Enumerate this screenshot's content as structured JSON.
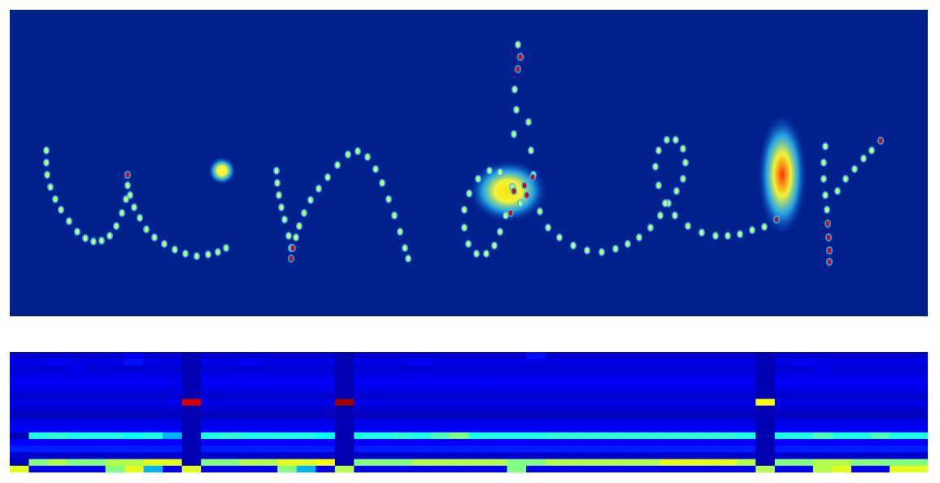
{
  "chart_data": [
    {
      "type": "scatter",
      "tick_labels": false,
      "xlim": [
        12,
        1141
      ],
      "ylim": [
        12,
        389
      ],
      "series": [
        {
          "marker": "glow",
          "colors": [
            "#ffff40",
            "#ffe000",
            "#ff3000"
          ],
          "x": [
            273,
            625,
            962
          ],
          "y": [
            210,
            235,
            215
          ],
          "sizes": [
            [
              17,
              17
            ],
            [
              48,
              38
            ],
            [
              30,
              75
            ]
          ]
        },
        {
          "marker": "dot",
          "color": "#c8ff70",
          "x": [
            57,
            57,
            58,
            62,
            68,
            75,
            85,
            95,
            105,
            115,
            125,
            135,
            143,
            150,
            155,
            157,
            160,
            165,
            172,
            180,
            190,
            202,
            215,
            228,
            242,
            256,
            268,
            278,
            340,
            341,
            343,
            346,
            350,
            355,
            358,
            364,
            368,
            374,
            382,
            392,
            403,
            415,
            428,
            440,
            452,
            462,
            470,
            478,
            485,
            492,
            498,
            502,
            640,
            630,
            615,
            602,
            588,
            577,
            571,
            571,
            576,
            586,
            598,
            608,
            615,
            622,
            632,
            635,
            633,
            637,
            650,
            653,
            656,
            664,
            674,
            688,
            705,
            722,
            740,
            757,
            772,
            786,
            800,
            812,
            822,
            832,
            840,
            843,
            840,
            831,
            820,
            810,
            806,
            810,
            818,
            830,
            846,
            863,
            880,
            895,
            910,
            925,
            940,
            1015,
            1013,
            1013,
            1015,
            1017,
            1030,
            1040,
            1051,
            1062,
            1072
          ],
          "y": [
            185,
            200,
            215,
            230,
            245,
            258,
            272,
            285,
            293,
            297,
            296,
            290,
            278,
            262,
            245,
            228,
            240,
            255,
            268,
            282,
            292,
            300,
            307,
            312,
            315,
            313,
            310,
            305,
            210,
            225,
            240,
            255,
            270,
            290,
            305,
            292,
            278,
            262,
            246,
            232,
            218,
            203,
            190,
            186,
            193,
            208,
            225,
            245,
            265,
            285,
            305,
            318,
            250,
            230,
            212,
            210,
            220,
            238,
            258,
            280,
            300,
            312,
            312,
            302,
            285,
            265,
            165,
            135,
            110,
            55,
            150,
            185,
            215,
            260,
            280,
            292,
            302,
            308,
            310,
            306,
            300,
            292,
            280,
            265,
            250,
            235,
            220,
            200,
            183,
            172,
            172,
            185,
            205,
            228,
            250,
            265,
            278,
            286,
            290,
            290,
            288,
            283,
            279,
            180,
            200,
            220,
            240,
            258,
            235,
            220,
            208,
            195,
            185
          ]
        },
        {
          "marker": "dot",
          "color": "#c01010",
          "x": [
            157,
            360,
            358,
            628,
            632,
            645,
            655,
            648,
            637,
            640,
            1018,
            1019,
            1020,
            1020,
            1083,
            955
          ],
          "y": [
            215,
            305,
            318,
            262,
            235,
            228,
            218,
            240,
            85,
            70,
            275,
            292,
            308,
            322,
            173,
            270
          ]
        }
      ]
    },
    {
      "type": "heatmap",
      "tick_labels": false,
      "xlim": [
        0,
        48
      ],
      "ylim": [
        0,
        18
      ],
      "zlim": [
        0,
        1
      ],
      "cells": [
        [
          0.08,
          0.08,
          0.08,
          0.08,
          0.08,
          0.08,
          0.12,
          0.08,
          0.08,
          0.05,
          0.08,
          0.08,
          0.08,
          0.08,
          0.08,
          0.08,
          0.08,
          0.05,
          0.08,
          0.08,
          0.08,
          0.08,
          0.08,
          0.08,
          0.08,
          0.08,
          0.08,
          0.14,
          0.08,
          0.08,
          0.08,
          0.08,
          0.08,
          0.08,
          0.08,
          0.08,
          0.08,
          0.08,
          0.08,
          0.05,
          0.08,
          0.08,
          0.08,
          0.08,
          0.08,
          0.08,
          0.08,
          0.08
        ],
        [
          0.1,
          0.1,
          0.12,
          0.1,
          0.1,
          0.1,
          0.14,
          0.1,
          0.1,
          0.05,
          0.1,
          0.1,
          0.12,
          0.1,
          0.1,
          0.1,
          0.1,
          0.05,
          0.1,
          0.1,
          0.1,
          0.12,
          0.1,
          0.1,
          0.1,
          0.1,
          0.1,
          0.1,
          0.1,
          0.1,
          0.1,
          0.1,
          0.1,
          0.1,
          0.1,
          0.1,
          0.1,
          0.1,
          0.1,
          0.05,
          0.1,
          0.12,
          0.1,
          0.1,
          0.1,
          0.1,
          0.1,
          0.1
        ],
        [
          0.08,
          0.08,
          0.08,
          0.1,
          0.08,
          0.08,
          0.08,
          0.08,
          0.08,
          0.05,
          0.08,
          0.08,
          0.08,
          0.08,
          0.08,
          0.08,
          0.08,
          0.05,
          0.08,
          0.08,
          0.08,
          0.08,
          0.08,
          0.08,
          0.08,
          0.08,
          0.08,
          0.08,
          0.08,
          0.08,
          0.08,
          0.08,
          0.08,
          0.08,
          0.08,
          0.08,
          0.08,
          0.08,
          0.08,
          0.05,
          0.08,
          0.08,
          0.1,
          0.08,
          0.08,
          0.08,
          0.08,
          0.08
        ],
        [
          0.1,
          0.1,
          0.1,
          0.1,
          0.1,
          0.1,
          0.1,
          0.1,
          0.1,
          0.05,
          0.1,
          0.1,
          0.1,
          0.1,
          0.1,
          0.1,
          0.1,
          0.05,
          0.1,
          0.1,
          0.1,
          0.1,
          0.1,
          0.1,
          0.1,
          0.1,
          0.1,
          0.1,
          0.1,
          0.1,
          0.1,
          0.1,
          0.1,
          0.1,
          0.1,
          0.1,
          0.1,
          0.1,
          0.1,
          0.05,
          0.1,
          0.1,
          0.1,
          0.1,
          0.1,
          0.1,
          0.1,
          0.1
        ],
        [
          0.12,
          0.12,
          0.12,
          0.12,
          0.12,
          0.12,
          0.12,
          0.12,
          0.12,
          0.05,
          0.12,
          0.12,
          0.12,
          0.12,
          0.12,
          0.12,
          0.12,
          0.05,
          0.12,
          0.12,
          0.12,
          0.12,
          0.12,
          0.12,
          0.12,
          0.12,
          0.12,
          0.12,
          0.12,
          0.12,
          0.12,
          0.12,
          0.12,
          0.12,
          0.12,
          0.12,
          0.12,
          0.12,
          0.12,
          0.05,
          0.12,
          0.12,
          0.12,
          0.12,
          0.12,
          0.12,
          0.12,
          0.12
        ],
        [
          0.1,
          0.1,
          0.1,
          0.1,
          0.1,
          0.1,
          0.1,
          0.1,
          0.1,
          0.05,
          0.1,
          0.1,
          0.1,
          0.1,
          0.1,
          0.1,
          0.1,
          0.05,
          0.1,
          0.1,
          0.1,
          0.1,
          0.1,
          0.1,
          0.1,
          0.1,
          0.1,
          0.1,
          0.1,
          0.1,
          0.1,
          0.1,
          0.1,
          0.1,
          0.1,
          0.1,
          0.1,
          0.1,
          0.1,
          0.05,
          0.1,
          0.1,
          0.1,
          0.1,
          0.1,
          0.1,
          0.1,
          0.1
        ],
        [
          0.08,
          0.08,
          0.08,
          0.08,
          0.08,
          0.08,
          0.08,
          0.08,
          0.08,
          0.05,
          0.08,
          0.08,
          0.08,
          0.08,
          0.08,
          0.08,
          0.08,
          0.05,
          0.08,
          0.08,
          0.08,
          0.08,
          0.08,
          0.08,
          0.08,
          0.08,
          0.08,
          0.08,
          0.08,
          0.08,
          0.08,
          0.08,
          0.08,
          0.08,
          0.08,
          0.08,
          0.08,
          0.08,
          0.08,
          0.05,
          0.08,
          0.08,
          0.08,
          0.08,
          0.08,
          0.08,
          0.08,
          0.08
        ],
        [
          0.1,
          0.1,
          0.1,
          0.1,
          0.1,
          0.1,
          0.1,
          0.1,
          0.1,
          0.92,
          0.1,
          0.1,
          0.1,
          0.1,
          0.1,
          0.1,
          0.1,
          0.97,
          0.1,
          0.1,
          0.1,
          0.1,
          0.1,
          0.1,
          0.1,
          0.1,
          0.1,
          0.1,
          0.1,
          0.1,
          0.1,
          0.1,
          0.1,
          0.1,
          0.1,
          0.1,
          0.1,
          0.1,
          0.1,
          0.62,
          0.1,
          0.1,
          0.1,
          0.1,
          0.1,
          0.1,
          0.1,
          0.1
        ],
        [
          0.08,
          0.08,
          0.08,
          0.08,
          0.08,
          0.08,
          0.08,
          0.08,
          0.08,
          0.05,
          0.08,
          0.08,
          0.08,
          0.08,
          0.08,
          0.08,
          0.08,
          0.05,
          0.08,
          0.08,
          0.08,
          0.08,
          0.08,
          0.08,
          0.08,
          0.08,
          0.08,
          0.08,
          0.08,
          0.08,
          0.08,
          0.08,
          0.08,
          0.08,
          0.08,
          0.08,
          0.08,
          0.08,
          0.08,
          0.05,
          0.08,
          0.08,
          0.08,
          0.08,
          0.08,
          0.08,
          0.08,
          0.08
        ],
        [
          0.06,
          0.06,
          0.06,
          0.06,
          0.06,
          0.06,
          0.06,
          0.06,
          0.06,
          0.05,
          0.06,
          0.06,
          0.06,
          0.06,
          0.06,
          0.06,
          0.06,
          0.05,
          0.06,
          0.06,
          0.06,
          0.06,
          0.06,
          0.06,
          0.06,
          0.06,
          0.06,
          0.06,
          0.06,
          0.06,
          0.06,
          0.06,
          0.06,
          0.06,
          0.06,
          0.06,
          0.06,
          0.06,
          0.06,
          0.05,
          0.06,
          0.06,
          0.06,
          0.06,
          0.06,
          0.06,
          0.06,
          0.06
        ],
        [
          0.1,
          0.1,
          0.1,
          0.1,
          0.1,
          0.1,
          0.1,
          0.1,
          0.1,
          0.05,
          0.1,
          0.1,
          0.1,
          0.1,
          0.1,
          0.1,
          0.1,
          0.05,
          0.1,
          0.1,
          0.1,
          0.1,
          0.1,
          0.1,
          0.1,
          0.1,
          0.1,
          0.1,
          0.1,
          0.1,
          0.1,
          0.1,
          0.1,
          0.1,
          0.1,
          0.1,
          0.1,
          0.1,
          0.1,
          0.05,
          0.1,
          0.1,
          0.1,
          0.1,
          0.1,
          0.1,
          0.1,
          0.1
        ],
        [
          0.12,
          0.12,
          0.12,
          0.12,
          0.12,
          0.12,
          0.12,
          0.12,
          0.12,
          0.05,
          0.12,
          0.12,
          0.12,
          0.12,
          0.12,
          0.12,
          0.12,
          0.05,
          0.12,
          0.12,
          0.12,
          0.12,
          0.12,
          0.12,
          0.12,
          0.12,
          0.12,
          0.12,
          0.12,
          0.12,
          0.12,
          0.12,
          0.12,
          0.12,
          0.12,
          0.12,
          0.12,
          0.12,
          0.12,
          0.05,
          0.12,
          0.12,
          0.12,
          0.12,
          0.12,
          0.12,
          0.12,
          0.12
        ],
        [
          0.05,
          0.4,
          0.42,
          0.4,
          0.4,
          0.4,
          0.38,
          0.4,
          0.3,
          0.05,
          0.4,
          0.42,
          0.4,
          0.4,
          0.4,
          0.4,
          0.38,
          0.05,
          0.4,
          0.4,
          0.42,
          0.4,
          0.45,
          0.5,
          0.4,
          0.4,
          0.4,
          0.4,
          0.42,
          0.42,
          0.42,
          0.42,
          0.42,
          0.42,
          0.42,
          0.42,
          0.42,
          0.42,
          0.4,
          0.05,
          0.4,
          0.4,
          0.45,
          0.4,
          0.4,
          0.45,
          0.4,
          0.4
        ],
        [
          0.12,
          0.12,
          0.12,
          0.12,
          0.12,
          0.12,
          0.12,
          0.12,
          0.12,
          0.05,
          0.12,
          0.12,
          0.12,
          0.12,
          0.12,
          0.12,
          0.12,
          0.05,
          0.12,
          0.12,
          0.12,
          0.12,
          0.12,
          0.12,
          0.12,
          0.12,
          0.12,
          0.12,
          0.12,
          0.12,
          0.12,
          0.12,
          0.12,
          0.12,
          0.12,
          0.12,
          0.12,
          0.12,
          0.12,
          0.05,
          0.12,
          0.12,
          0.12,
          0.12,
          0.12,
          0.12,
          0.12,
          0.12
        ],
        [
          0.15,
          0.15,
          0.15,
          0.15,
          0.15,
          0.15,
          0.15,
          0.15,
          0.15,
          0.05,
          0.15,
          0.15,
          0.15,
          0.15,
          0.15,
          0.15,
          0.15,
          0.05,
          0.15,
          0.15,
          0.15,
          0.15,
          0.15,
          0.15,
          0.15,
          0.15,
          0.15,
          0.15,
          0.15,
          0.15,
          0.15,
          0.15,
          0.15,
          0.15,
          0.15,
          0.15,
          0.15,
          0.15,
          0.15,
          0.05,
          0.15,
          0.15,
          0.15,
          0.15,
          0.15,
          0.15,
          0.15,
          0.15
        ],
        [
          0.08,
          0.08,
          0.08,
          0.08,
          0.08,
          0.08,
          0.08,
          0.08,
          0.08,
          0.05,
          0.08,
          0.08,
          0.08,
          0.08,
          0.08,
          0.08,
          0.08,
          0.05,
          0.08,
          0.08,
          0.08,
          0.08,
          0.08,
          0.08,
          0.08,
          0.08,
          0.08,
          0.08,
          0.08,
          0.08,
          0.08,
          0.08,
          0.08,
          0.08,
          0.08,
          0.08,
          0.08,
          0.08,
          0.08,
          0.05,
          0.08,
          0.08,
          0.08,
          0.08,
          0.08,
          0.08,
          0.08,
          0.08
        ],
        [
          0.05,
          0.5,
          0.55,
          0.5,
          0.5,
          0.55,
          0.55,
          0.6,
          0.6,
          0.05,
          0.5,
          0.5,
          0.55,
          0.55,
          0.6,
          0.6,
          0.62,
          0.05,
          0.5,
          0.5,
          0.5,
          0.55,
          0.55,
          0.55,
          0.55,
          0.55,
          0.5,
          0.5,
          0.55,
          0.55,
          0.55,
          0.55,
          0.55,
          0.55,
          0.6,
          0.6,
          0.6,
          0.6,
          0.55,
          0.05,
          0.5,
          0.5,
          0.55,
          0.55,
          0.5,
          0.5,
          0.5,
          0.5
        ],
        [
          0.6,
          0.12,
          0.12,
          0.12,
          0.12,
          0.5,
          0.6,
          0.3,
          0.12,
          0.6,
          0.12,
          0.12,
          0.12,
          0.12,
          0.5,
          0.3,
          0.12,
          0.55,
          0.12,
          0.12,
          0.12,
          0.12,
          0.12,
          0.12,
          0.12,
          0.12,
          0.5,
          0.12,
          0.12,
          0.12,
          0.12,
          0.12,
          0.12,
          0.12,
          0.12,
          0.12,
          0.12,
          0.12,
          0.12,
          0.55,
          0.12,
          0.12,
          0.55,
          0.6,
          0.12,
          0.12,
          0.6,
          0.6
        ]
      ]
    }
  ]
}
